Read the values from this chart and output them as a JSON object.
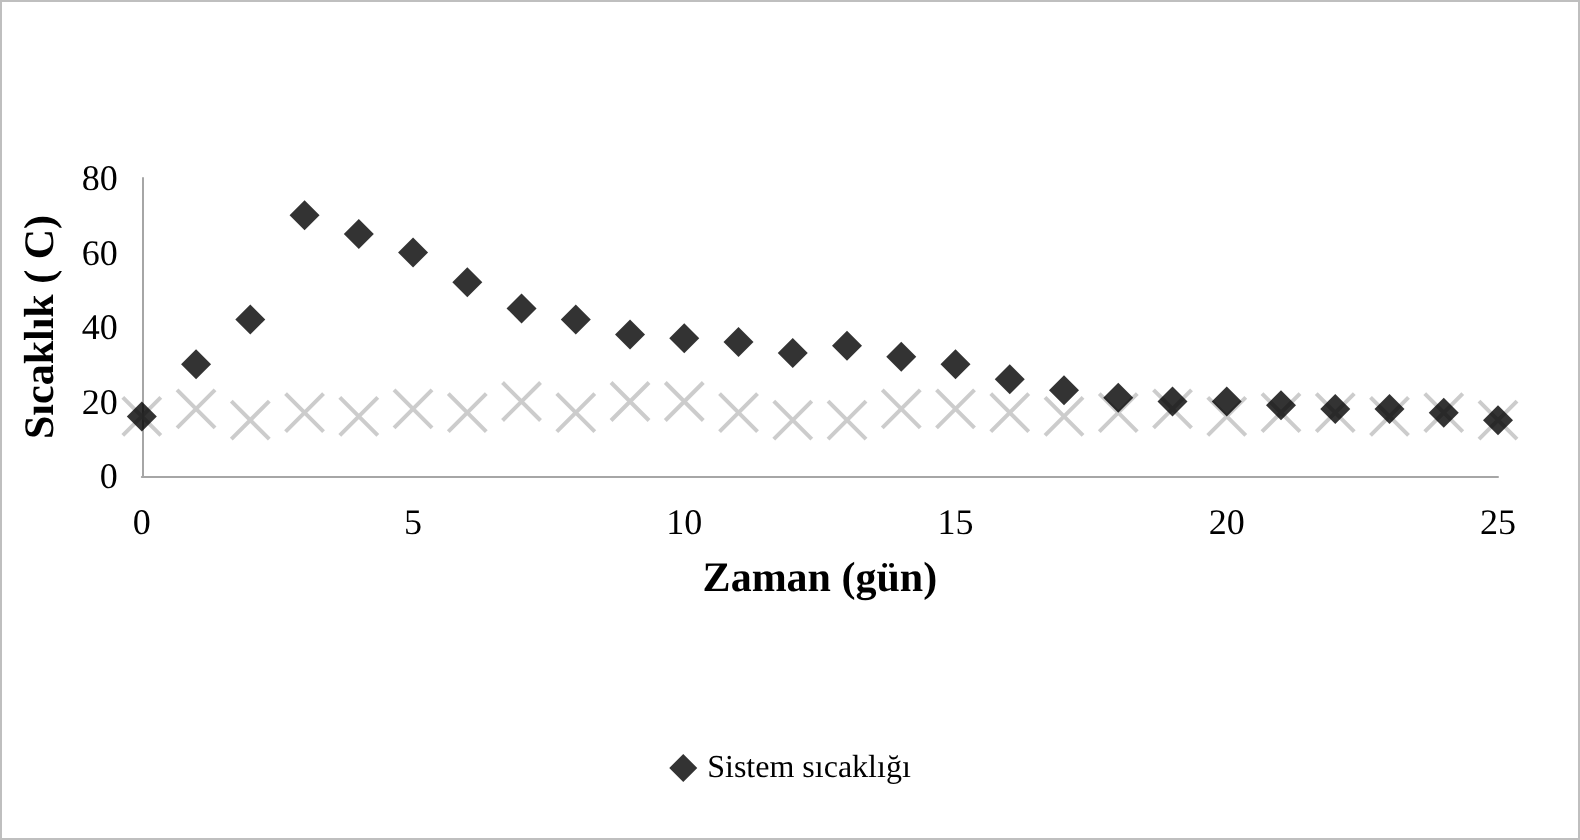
{
  "chart_data": {
    "type": "scatter",
    "xlabel": "Zaman (gün)",
    "ylabel": "Sıcaklık ( C)",
    "x": [
      0,
      1,
      2,
      3,
      4,
      5,
      6,
      7,
      8,
      9,
      10,
      11,
      12,
      13,
      14,
      15,
      16,
      17,
      18,
      19,
      20,
      21,
      22,
      23,
      24,
      25
    ],
    "series": [
      {
        "name": "Sistem sıcaklığı",
        "color": "#000000",
        "marker": "diamond",
        "values": [
          16,
          30,
          42,
          70,
          65,
          60,
          52,
          45,
          42,
          38,
          37,
          36,
          33,
          35,
          32,
          30,
          26,
          23,
          21,
          20,
          20,
          19,
          18,
          18,
          17,
          15
        ]
      },
      {
        "color": "#bfbfbf",
        "marker": "cross",
        "values": [
          16,
          18,
          15,
          17,
          16,
          18,
          17,
          20,
          17,
          20,
          20,
          17,
          15,
          15,
          18,
          18,
          17,
          16,
          17,
          18,
          16,
          17,
          17,
          16,
          17,
          15
        ]
      }
    ],
    "xlim": [
      0,
      25
    ],
    "xticks": [
      0,
      5,
      10,
      15,
      20,
      25
    ],
    "ylim": [
      0,
      80
    ],
    "yticks": [
      0,
      20,
      40,
      60,
      80
    ],
    "grid": false,
    "legend": "bottom"
  }
}
